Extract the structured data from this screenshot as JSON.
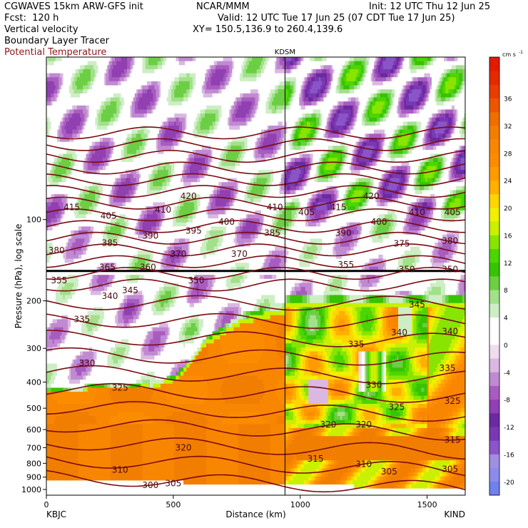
{
  "header": {
    "model": "CGWAVES 15km ARW-GFS init",
    "fcst": "Fcst:  120 h",
    "org": "NCAR/MMM",
    "init": "Init: 12 UTC Thu 12 Jun 25",
    "valid": "Valid: 12 UTC Tue 17 Jun 25 (07 CDT Tue 17 Jun 25)",
    "xy": "XY= 150.5,136.9 to 260.4,139.6",
    "field1": "Vertical velocity",
    "field2": "Boundary Layer Tracer",
    "field3": "Potential Temperature"
  },
  "colors": {
    "theta": "#7a0a12",
    "field3_text": "#8b1a1a"
  },
  "chart_data": {
    "type": "heatmap",
    "title": "KDSM",
    "xlabel": "Distance (km)",
    "ylabel": "Pressure (hPa), log scale",
    "x_range": [
      0,
      1650
    ],
    "y_range": [
      1050,
      25
    ],
    "y_scale": "log",
    "x_ticks": [
      0,
      500,
      1000,
      1500
    ],
    "y_ticks": [
      100,
      200,
      300,
      400,
      500,
      600,
      700,
      800,
      900,
      1000
    ],
    "endpoints": {
      "left": "KBJC",
      "right": "KIND"
    },
    "marker_x": 940,
    "colorbar": {
      "unit": "cm s",
      "unit_exp": "-1",
      "levels": [
        -22,
        -20,
        -18,
        -16,
        -14,
        -12,
        -10,
        -8,
        -6,
        -4,
        -2,
        0,
        2,
        4,
        6,
        8,
        10,
        12,
        14,
        16,
        18,
        20,
        22,
        24,
        26,
        28,
        30,
        32,
        34,
        36,
        38,
        40,
        42
      ],
      "colors": [
        "#7080ee",
        "#8c8ce8",
        "#a08fe0",
        "#8a55c8",
        "#7a38b2",
        "#6a2aa0",
        "#9040b0",
        "#a85cc0",
        "#c08ad2",
        "#dab8e2",
        "#f0dcf0",
        "#ffffff",
        "#ffffff",
        "#cdeec4",
        "#a2e08a",
        "#6cce44",
        "#36c400",
        "#4cd600",
        "#88e400",
        "#c8f000",
        "#f0f000",
        "#ffd400",
        "#ffb000",
        "#ff9a00",
        "#fb8c00",
        "#f88600",
        "#f27e00",
        "#ee6e00",
        "#ec5600",
        "#e83c00",
        "#e42a00",
        "#e41a00"
      ],
      "tick_labels": [
        "-20",
        "-16",
        "-12",
        "-8",
        "-4",
        "0",
        "4",
        "8",
        "12",
        "16",
        "20",
        "24",
        "28",
        "32",
        "36"
      ]
    },
    "theta_levels": [
      300,
      305,
      310,
      315,
      320,
      325,
      330,
      335,
      340,
      345,
      350,
      355,
      360,
      365,
      370,
      375,
      380,
      385,
      390,
      395,
      400,
      405,
      410,
      415,
      420
    ],
    "theta_labels": [
      {
        "text": "420",
        "x": 560,
        "p": 82
      },
      {
        "text": "420",
        "x": 1280,
        "p": 82
      },
      {
        "text": "415",
        "x": 100,
        "p": 90
      },
      {
        "text": "415",
        "x": 1150,
        "p": 90
      },
      {
        "text": "405",
        "x": 245,
        "p": 97
      },
      {
        "text": "410",
        "x": 460,
        "p": 92
      },
      {
        "text": "410",
        "x": 900,
        "p": 90
      },
      {
        "text": "405",
        "x": 1025,
        "p": 94
      },
      {
        "text": "410",
        "x": 1460,
        "p": 94
      },
      {
        "text": "405",
        "x": 1600,
        "p": 94
      },
      {
        "text": "400",
        "x": 710,
        "p": 102
      },
      {
        "text": "400",
        "x": 1310,
        "p": 102
      },
      {
        "text": "395",
        "x": 580,
        "p": 110
      },
      {
        "text": "390",
        "x": 410,
        "p": 115
      },
      {
        "text": "390",
        "x": 1170,
        "p": 112
      },
      {
        "text": "385",
        "x": 250,
        "p": 122
      },
      {
        "text": "385",
        "x": 890,
        "p": 112
      },
      {
        "text": "380",
        "x": 1590,
        "p": 120
      },
      {
        "text": "375",
        "x": 1400,
        "p": 123
      },
      {
        "text": "380",
        "x": 40,
        "p": 130
      },
      {
        "text": "370",
        "x": 520,
        "p": 134
      },
      {
        "text": "370",
        "x": 760,
        "p": 134
      },
      {
        "text": "365",
        "x": 240,
        "p": 150
      },
      {
        "text": "360",
        "x": 400,
        "p": 150
      },
      {
        "text": "355",
        "x": 50,
        "p": 168
      },
      {
        "text": "350",
        "x": 590,
        "p": 168
      },
      {
        "text": "345",
        "x": 330,
        "p": 183
      },
      {
        "text": "340",
        "x": 250,
        "p": 192
      },
      {
        "text": "335",
        "x": 140,
        "p": 234
      },
      {
        "text": "330",
        "x": 160,
        "p": 340
      },
      {
        "text": "325",
        "x": 290,
        "p": 420
      },
      {
        "text": "350",
        "x": 1420,
        "p": 153
      },
      {
        "text": "350",
        "x": 1590,
        "p": 153
      },
      {
        "text": "355",
        "x": 1180,
        "p": 147
      },
      {
        "text": "345",
        "x": 1460,
        "p": 207
      },
      {
        "text": "340",
        "x": 1390,
        "p": 262
      },
      {
        "text": "340",
        "x": 1590,
        "p": 260
      },
      {
        "text": "335",
        "x": 1220,
        "p": 290
      },
      {
        "text": "335",
        "x": 1580,
        "p": 355
      },
      {
        "text": "330",
        "x": 1290,
        "p": 410
      },
      {
        "text": "325",
        "x": 1380,
        "p": 495
      },
      {
        "text": "325",
        "x": 1600,
        "p": 470
      },
      {
        "text": "320",
        "x": 1110,
        "p": 575
      },
      {
        "text": "320",
        "x": 1250,
        "p": 575
      },
      {
        "text": "320",
        "x": 540,
        "p": 700
      },
      {
        "text": "315",
        "x": 1600,
        "p": 655
      },
      {
        "text": "315",
        "x": 1060,
        "p": 770
      },
      {
        "text": "310",
        "x": 1250,
        "p": 805
      },
      {
        "text": "310",
        "x": 290,
        "p": 845
      },
      {
        "text": "305",
        "x": 1350,
        "p": 860
      },
      {
        "text": "305",
        "x": 1590,
        "p": 840
      },
      {
        "text": "305",
        "x": 500,
        "p": 950
      },
      {
        "text": "300",
        "x": 410,
        "p": 965
      }
    ]
  }
}
